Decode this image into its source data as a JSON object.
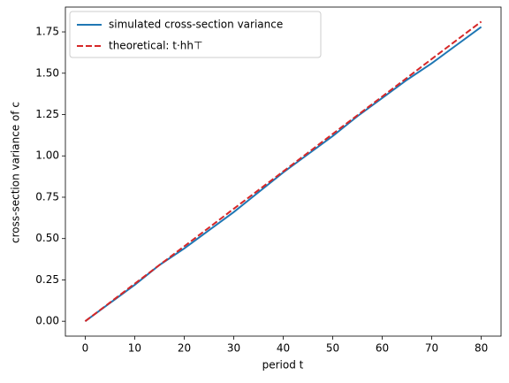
{
  "chart_data": {
    "type": "line",
    "xlabel": "period t",
    "ylabel": "cross-section variance of c",
    "x": [
      0,
      5,
      10,
      15,
      20,
      25,
      30,
      35,
      40,
      45,
      50,
      55,
      60,
      65,
      70,
      75,
      80
    ],
    "series": [
      {
        "name": "simulated cross-section variance",
        "color": "#1f77b4",
        "style": "solid",
        "values": [
          0,
          0.11,
          0.22,
          0.34,
          0.44,
          0.55,
          0.66,
          0.78,
          0.9,
          1.01,
          1.12,
          1.24,
          1.35,
          1.46,
          1.56,
          1.67,
          1.78
        ]
      },
      {
        "name": "theoretical: t⋅hh⊤",
        "color": "#d62728",
        "style": "dashed",
        "values": [
          0,
          0.113,
          0.227,
          0.34,
          0.453,
          0.566,
          0.68,
          0.793,
          0.906,
          1.019,
          1.133,
          1.246,
          1.359,
          1.472,
          1.586,
          1.699,
          1.812
        ]
      }
    ],
    "xlim": [
      -4,
      84
    ],
    "ylim": [
      -0.09,
      1.9
    ],
    "xticks": [
      0,
      10,
      20,
      30,
      40,
      50,
      60,
      70,
      80
    ],
    "yticks": [
      {
        "value": 0,
        "label": "0.00"
      },
      {
        "value": 0.25,
        "label": "0.25"
      },
      {
        "value": 0.5,
        "label": "0.50"
      },
      {
        "value": 0.75,
        "label": "0.75"
      },
      {
        "value": 1,
        "label": "1.00"
      },
      {
        "value": 1.25,
        "label": "1.25"
      },
      {
        "value": 1.5,
        "label": "1.50"
      },
      {
        "value": 1.75,
        "label": "1.75"
      }
    ],
    "grid": false,
    "legend": "upper-left"
  }
}
